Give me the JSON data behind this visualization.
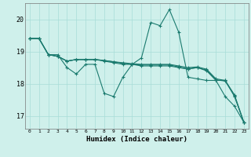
{
  "title": "",
  "xlabel": "Humidex (Indice chaleur)",
  "bg_color": "#cff0eb",
  "grid_color": "#a8ddd7",
  "line_color": "#1a7a6e",
  "xlim": [
    -0.5,
    23.5
  ],
  "ylim": [
    16.6,
    20.5
  ],
  "yticks": [
    17,
    18,
    19,
    20
  ],
  "xticks": [
    0,
    1,
    2,
    3,
    4,
    5,
    6,
    7,
    8,
    9,
    10,
    11,
    12,
    13,
    14,
    15,
    16,
    17,
    18,
    19,
    20,
    21,
    22,
    23
  ],
  "lines": [
    [
      19.4,
      19.4,
      18.9,
      18.9,
      18.5,
      18.3,
      18.6,
      18.6,
      17.7,
      17.6,
      18.2,
      18.6,
      18.8,
      19.9,
      19.8,
      20.3,
      19.6,
      18.2,
      18.15,
      18.1,
      18.1,
      17.6,
      17.3,
      16.8
    ],
    [
      19.4,
      19.4,
      18.9,
      18.85,
      18.7,
      18.75,
      18.75,
      18.75,
      18.7,
      18.65,
      18.6,
      18.6,
      18.55,
      18.55,
      18.55,
      18.55,
      18.5,
      18.45,
      18.5,
      18.4,
      18.1,
      18.1,
      17.6,
      16.8
    ],
    [
      19.4,
      19.4,
      18.9,
      18.85,
      18.7,
      18.75,
      18.75,
      18.75,
      18.72,
      18.68,
      18.65,
      18.62,
      18.6,
      18.6,
      18.6,
      18.6,
      18.55,
      18.5,
      18.52,
      18.45,
      18.15,
      18.1,
      17.65,
      16.8
    ],
    [
      19.4,
      19.4,
      18.9,
      18.85,
      18.7,
      18.75,
      18.75,
      18.75,
      18.72,
      18.68,
      18.63,
      18.6,
      18.58,
      18.58,
      18.58,
      18.58,
      18.52,
      18.46,
      18.5,
      18.42,
      18.12,
      18.08,
      17.62,
      16.8
    ]
  ]
}
